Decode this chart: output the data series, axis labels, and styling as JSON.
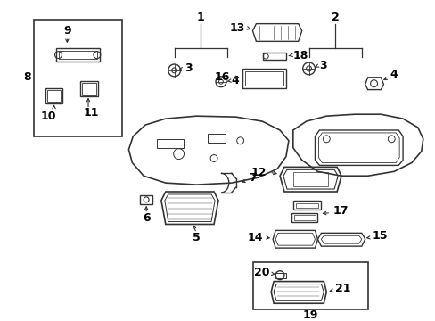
{
  "bg_color": "#ffffff",
  "fig_width": 4.89,
  "fig_height": 3.6,
  "dpi": 100,
  "lc": "#333333"
}
